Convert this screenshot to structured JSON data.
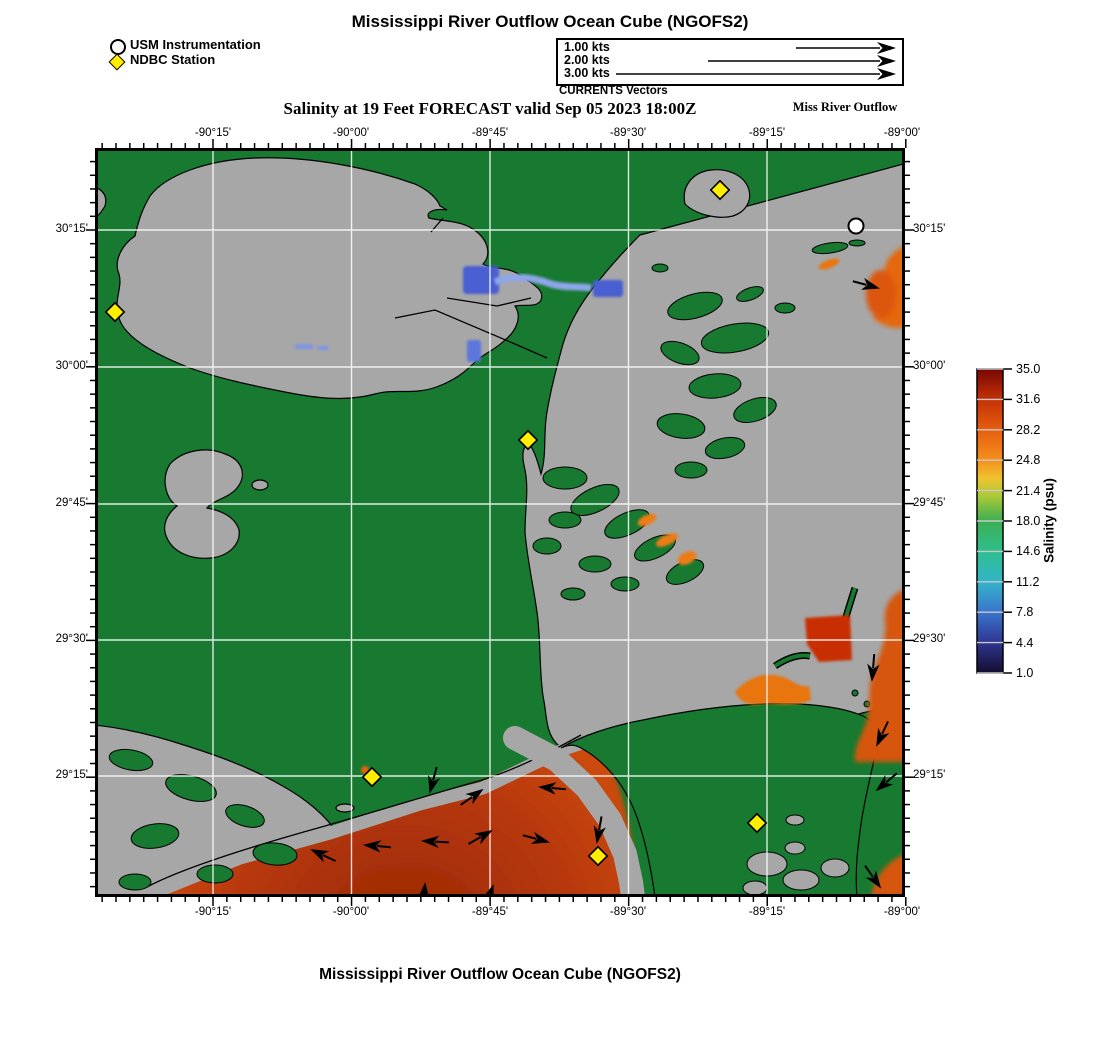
{
  "header": {
    "title": "Mississippi River Outflow Ocean Cube (NGOFS2)",
    "subtitle": "Salinity at 19 Feet FORECAST valid Sep 05 2023 18:00Z",
    "region_label": "Miss River Outflow",
    "legend": {
      "usm_label": "USM Instrumentation",
      "ndbc_label": "NDBC Station"
    },
    "vector_legend": {
      "rows": [
        "1.00 kts",
        "2.00 kts",
        "3.00 kts"
      ],
      "caption": "CURRENTS Vectors"
    }
  },
  "axes": {
    "lon_labels": [
      "-90°15'",
      "-90°00'",
      "-89°45'",
      "-89°30'",
      "-89°15'",
      "-89°00'"
    ],
    "lat_labels": [
      "30°15'",
      "30°00'",
      "29°45'",
      "29°30'",
      "29°15'"
    ]
  },
  "colorbar": {
    "title": "Salinity (psu)",
    "ticks": [
      "35.0",
      "31.6",
      "28.2",
      "24.8",
      "21.4",
      "18.0",
      "14.6",
      "11.2",
      "7.8",
      "4.4",
      "1.0"
    ],
    "range": [
      1.0,
      35.0
    ]
  },
  "map": {
    "stations": {
      "usm": 1,
      "ndbc": 6
    },
    "colors": {
      "water_green": "#177a30",
      "land_gray": "#a7a7a7",
      "gulf_orange": "#d4530e",
      "gulf_dark_red": "#992806",
      "low_salinity_blue": "#4a5fd2",
      "river_light_blue": "#8ea6ea",
      "station_yellow": "#ffee00",
      "usm_marker_white": "#ffffff",
      "gridline_white": "#ffffff"
    }
  },
  "footer": {
    "title": "Mississippi River Outflow Ocean Cube (NGOFS2)"
  }
}
